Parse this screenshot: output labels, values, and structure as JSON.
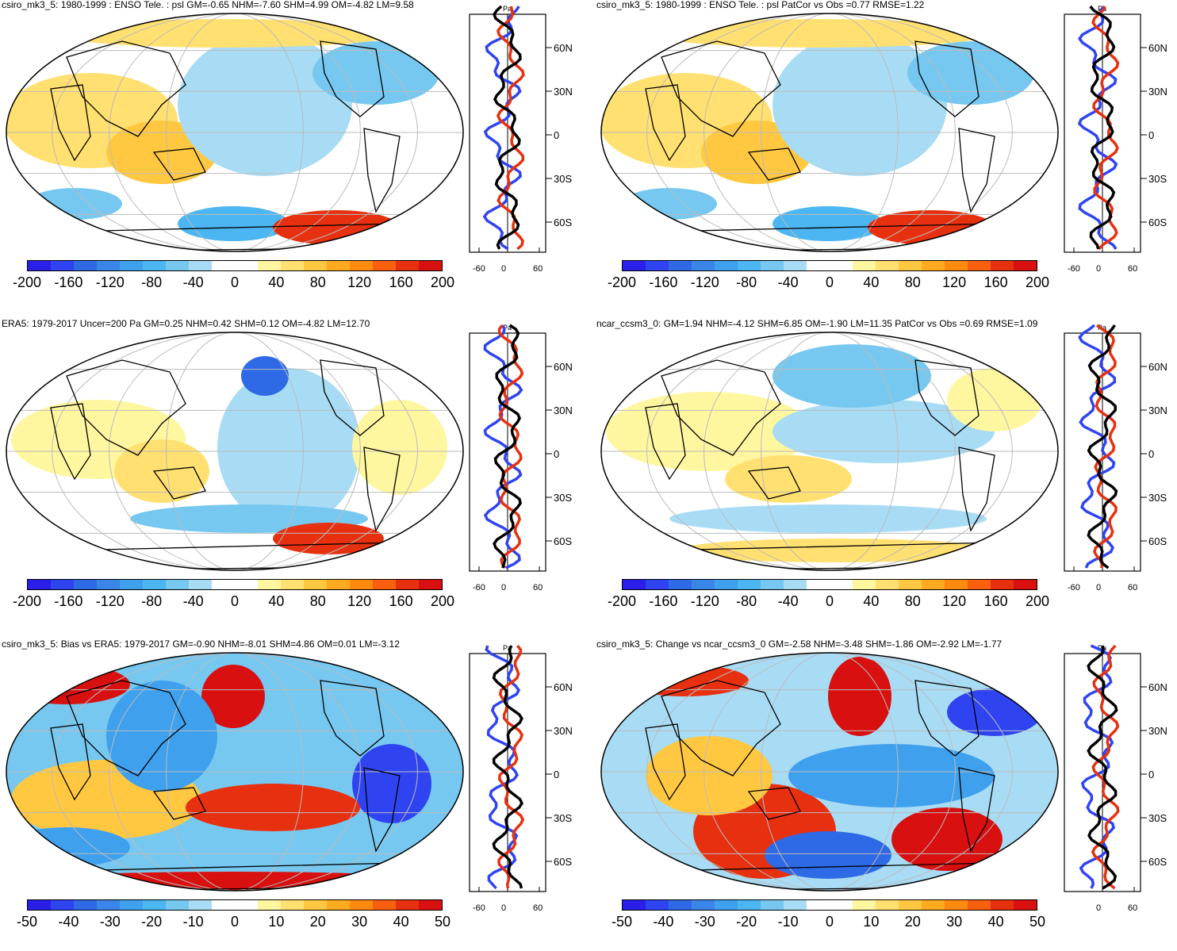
{
  "palette_pa": [
    "#2a1fe8",
    "#2f44f0",
    "#2f6ae6",
    "#3a86e8",
    "#3fa0ee",
    "#4cb6f2",
    "#76c8f0",
    "#a8dcf4",
    "#ffffff",
    "#ffffff",
    "#fff6a0",
    "#ffe070",
    "#ffc840",
    "#ffaa20",
    "#ff8a10",
    "#f86010",
    "#e63010",
    "#d81010"
  ],
  "palette_bias": [
    "#2a1fe8",
    "#2f44f0",
    "#2f6ae6",
    "#3a86e8",
    "#3fa0ee",
    "#4cb6f2",
    "#76c8f0",
    "#a8dcf4",
    "#ffffff",
    "#ffffff",
    "#fff6a0",
    "#ffe070",
    "#ffc840",
    "#ffaa20",
    "#ff8a10",
    "#f86010",
    "#e63010",
    "#d81010"
  ],
  "lat_labels": [
    "60N",
    "30N",
    "0",
    "30S",
    "60S"
  ],
  "panels": [
    {
      "id": "p1",
      "title": "csiro_mk3_5: 1980-1999 : ENSO Tele. : psl GM=-0.65 NHM=-7.60 SHM=4.99 OM=-4.82 LM=9.58",
      "unit": "Pa",
      "profile_ticks": [
        "-60",
        "0",
        "60"
      ],
      "colorbar_ticks": [
        "-200",
        "-160",
        "-120",
        "-80",
        "-40",
        "0",
        "40",
        "80",
        "120",
        "160",
        "200"
      ],
      "scheme": "pa"
    },
    {
      "id": "p2",
      "title": "csiro_mk3_5: 1980-1999 : ENSO Tele. : psl PatCor vs Obs =0.77 RMSE=1.22",
      "unit": "Pa",
      "profile_ticks": [
        "-60",
        "0",
        "60"
      ],
      "colorbar_ticks": [
        "-200",
        "-160",
        "-120",
        "-80",
        "-40",
        "0",
        "40",
        "80",
        "120",
        "160",
        "200"
      ],
      "scheme": "pa"
    },
    {
      "id": "p3",
      "title": "ERA5: 1979-2017 Uncer=200 Pa GM=0.25 NHM=0.42 SHM=0.12 OM=-4.82 LM=12.70",
      "unit": "Pa",
      "profile_ticks": [
        "-60",
        "0",
        "60"
      ],
      "colorbar_ticks": [
        "-200",
        "-160",
        "-120",
        "-80",
        "-40",
        "0",
        "40",
        "80",
        "120",
        "160",
        "200"
      ],
      "scheme": "pa"
    },
    {
      "id": "p4",
      "title": "ncar_ccsm3_0: GM=1.94 NHM=-4.12 SHM=6.85 OM=-1.90 LM=11.35 PatCor vs Obs =0.69 RMSE=1.09",
      "unit": "Pa",
      "profile_ticks": [
        "-60",
        "0",
        "60"
      ],
      "colorbar_ticks": [
        "-200",
        "-160",
        "-120",
        "-80",
        "-40",
        "0",
        "40",
        "80",
        "120",
        "160",
        "200"
      ],
      "scheme": "pa"
    },
    {
      "id": "p5",
      "title": "csiro_mk3_5: Bias vs ERA5: 1979-2017 GM=-0.90 NHM=-8.01 SHM=4.86 OM=0.01 LM=-3.12",
      "unit": "Pa",
      "profile_ticks": [
        "-60",
        "0",
        "60"
      ],
      "colorbar_ticks": [
        "-50",
        "-40",
        "-30",
        "-20",
        "-10",
        "0",
        "10",
        "20",
        "30",
        "40",
        "50"
      ],
      "scheme": "bias"
    },
    {
      "id": "p6",
      "title": "csiro_mk3_5: Change vs ncar_ccsm3_0 GM=-2.58 NHM=-3.48 SHM=-1.86 OM=-2.92 LM=-1.77",
      "unit": "Pa",
      "profile_ticks": [
        "0",
        "60"
      ],
      "colorbar_ticks": [
        "-50",
        "-40",
        "-30",
        "-20",
        "-10",
        "0",
        "10",
        "20",
        "30",
        "40",
        "50"
      ],
      "scheme": "bias"
    }
  ]
}
